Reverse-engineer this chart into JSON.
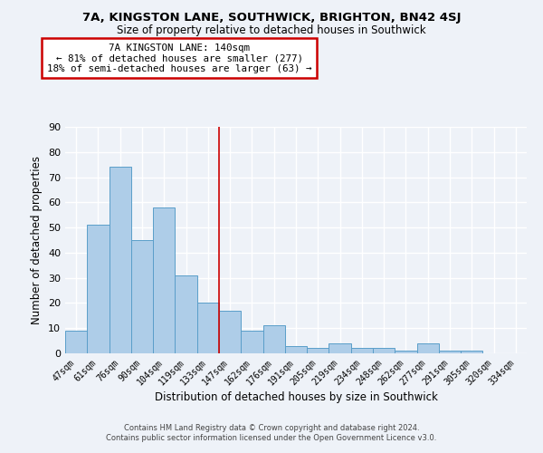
{
  "title_line1": "7A, KINGSTON LANE, SOUTHWICK, BRIGHTON, BN42 4SJ",
  "title_line2": "Size of property relative to detached houses in Southwick",
  "xlabel": "Distribution of detached houses by size in Southwick",
  "ylabel": "Number of detached properties",
  "categories": [
    "47sqm",
    "61sqm",
    "76sqm",
    "90sqm",
    "104sqm",
    "119sqm",
    "133sqm",
    "147sqm",
    "162sqm",
    "176sqm",
    "191sqm",
    "205sqm",
    "219sqm",
    "234sqm",
    "248sqm",
    "262sqm",
    "277sqm",
    "291sqm",
    "305sqm",
    "320sqm",
    "334sqm"
  ],
  "values": [
    9,
    51,
    74,
    45,
    58,
    31,
    20,
    17,
    9,
    11,
    3,
    2,
    4,
    2,
    2,
    1,
    4,
    1,
    1,
    0,
    0
  ],
  "bar_color": "#aecde8",
  "bar_edgecolor": "#5a9ec9",
  "ylim": [
    0,
    90
  ],
  "yticks": [
    0,
    10,
    20,
    30,
    40,
    50,
    60,
    70,
    80,
    90
  ],
  "red_line_x": 6.5,
  "annotation_line1": "7A KINGSTON LANE: 140sqm",
  "annotation_line2": "← 81% of detached houses are smaller (277)",
  "annotation_line3": "18% of semi-detached houses are larger (63) →",
  "annotation_box_color": "#ffffff",
  "annotation_box_edgecolor": "#cc0000",
  "footer_line1": "Contains HM Land Registry data © Crown copyright and database right 2024.",
  "footer_line2": "Contains public sector information licensed under the Open Government Licence v3.0.",
  "background_color": "#eef2f8",
  "grid_color": "#ffffff",
  "title1_fontsize": 9.5,
  "title2_fontsize": 8.5
}
